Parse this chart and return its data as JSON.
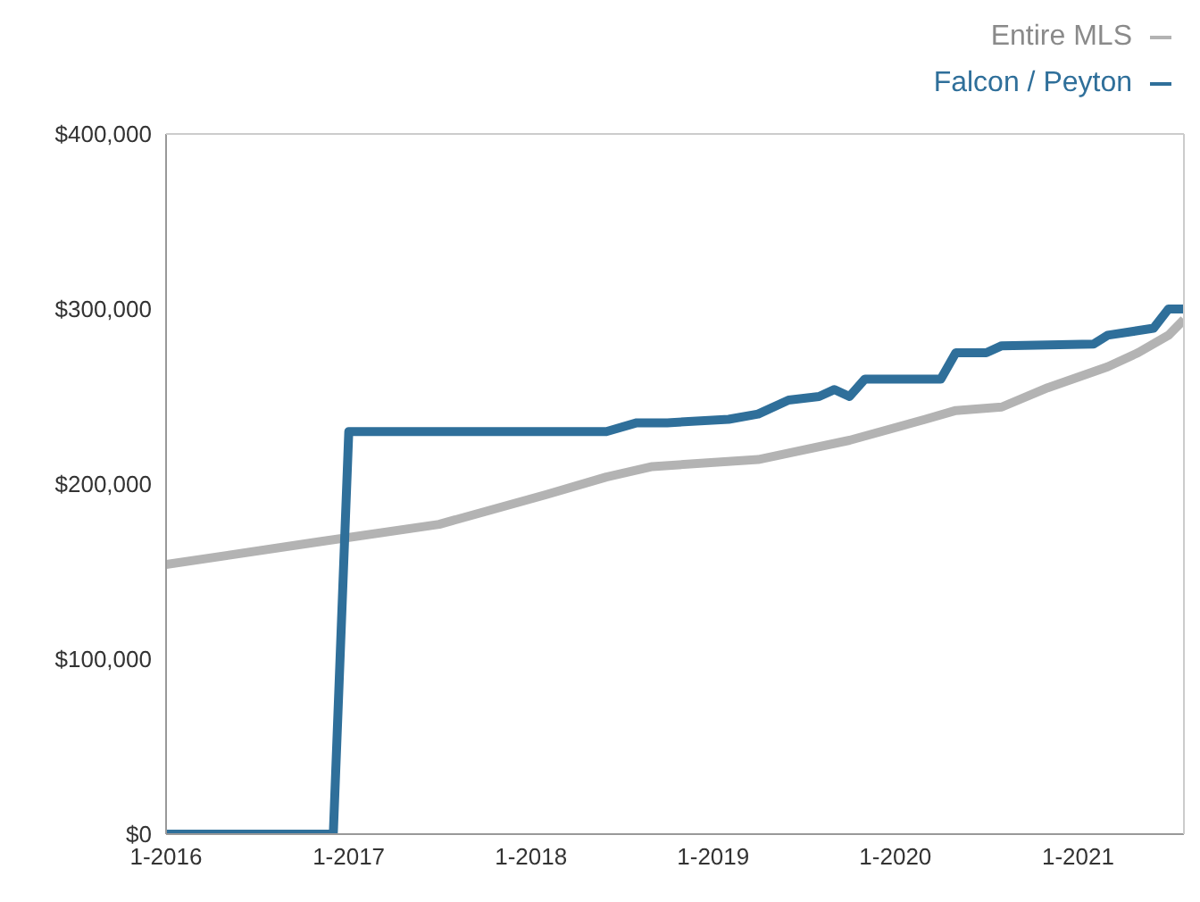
{
  "chart_data": {
    "type": "line",
    "xlim": [
      "2016-01",
      "2021-08"
    ],
    "xticks": [
      {
        "value": "2016-01",
        "label": "1-2016"
      },
      {
        "value": "2017-01",
        "label": "1-2017"
      },
      {
        "value": "2018-01",
        "label": "1-2018"
      },
      {
        "value": "2019-01",
        "label": "1-2019"
      },
      {
        "value": "2020-01",
        "label": "1-2020"
      },
      {
        "value": "2021-01",
        "label": "1-2021"
      }
    ],
    "ylim": [
      0,
      400000
    ],
    "yticks": [
      {
        "value": 0,
        "label": "$0"
      },
      {
        "value": 100000,
        "label": "$100,000"
      },
      {
        "value": 200000,
        "label": "$200,000"
      },
      {
        "value": 300000,
        "label": "$300,000"
      },
      {
        "value": 400000,
        "label": "$400,000"
      }
    ],
    "grid": false,
    "legend": "top right",
    "marker": "none",
    "series": [
      {
        "name": "Entire MLS",
        "color": "#b3b3b3",
        "x": [
          "2016-01",
          "2016-11",
          "2017-07",
          "2018-02",
          "2018-06",
          "2018-09",
          "2019-04",
          "2019-10",
          "2020-03",
          "2020-05",
          "2020-08",
          "2020-11",
          "2021-03",
          "2021-05",
          "2021-07",
          "2021-08"
        ],
        "values": [
          154000,
          167000,
          177000,
          194000,
          204000,
          210000,
          214000,
          225000,
          237000,
          242000,
          244000,
          255000,
          267000,
          275000,
          285000,
          294000
        ]
      },
      {
        "name": "Falcon / Peyton",
        "color": "#2f6f9a",
        "x": [
          "2016-01",
          "2016-12",
          "2017-01",
          "2018-06",
          "2018-08",
          "2018-10",
          "2019-02",
          "2019-04",
          "2019-06",
          "2019-08",
          "2019-09",
          "2019-10",
          "2019-11",
          "2020-04",
          "2020-05",
          "2020-07",
          "2020-08",
          "2021-02",
          "2021-03",
          "2021-06",
          "2021-07",
          "2021-08"
        ],
        "values": [
          0,
          0,
          230000,
          230000,
          235000,
          235000,
          237000,
          240000,
          248000,
          250000,
          254000,
          250000,
          260000,
          260000,
          275000,
          275000,
          279000,
          280000,
          285000,
          289000,
          300000,
          300000
        ]
      }
    ]
  }
}
